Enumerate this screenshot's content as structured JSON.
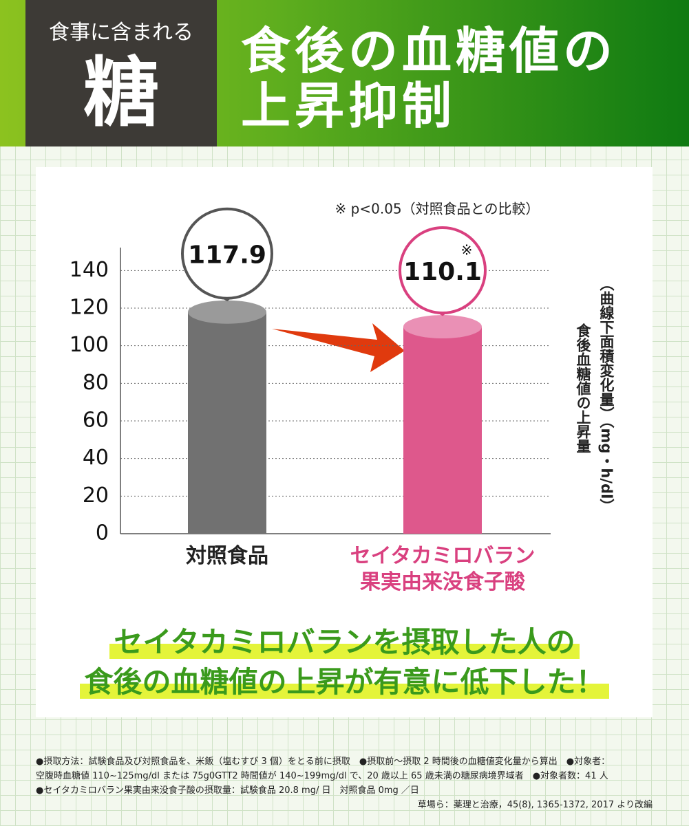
{
  "header": {
    "label": "食事に含まれる",
    "big": "糖",
    "title_lines": [
      "食後の血糖値の",
      "上昇抑制"
    ]
  },
  "chart_data": {
    "type": "bar",
    "note": "※ p<0.05（対照食品との比較）",
    "significance_mark": "※",
    "categories": [
      "対照食品",
      "セイタカミロバラン果実由来没食子酸"
    ],
    "values": [
      117.9,
      110.1
    ],
    "colors": [
      "#717171",
      "#de588c"
    ],
    "top_colors": [
      "#9a9a9a",
      "#ea90b5"
    ],
    "label_colors": [
      "#222222",
      "#d9407f"
    ],
    "bubble_colors": [
      "#555555",
      "#d9407f"
    ],
    "ylim": [
      0,
      150
    ],
    "yticks": [
      0,
      20,
      40,
      60,
      80,
      100,
      120,
      140
    ],
    "grid": true,
    "y_axis_label": [
      "（曲線下面積変化量）（mg・h/dl）",
      "食後血糖値の上昇量"
    ]
  },
  "headline": [
    "セイタカミロバランを摂取した人の",
    "食後の血糖値の上昇が有意に低下した！"
  ],
  "footnotes": [
    "●摂取方法：試験食品及び対照食品を、米飯（塩むすび 3 個）をとる前に摂取　●摂取前〜摂取 2 時間後の血糖値変化量から算出　●対象者：",
    "空腹時血糖値 110~125mg/dl または 75g0GTT2 時間値が 140~199mg/dl で、20 歳以上 65 歳未満の糖尿病境界域者　●対象者数：41 人",
    "●セイタカミロバラン果実由来没食子酸の摂取量：試験食品 20.8 mg/ 日　対照食品 0mg ／日",
    "草場ら：薬理と治療，45(8), 1365-1372, 2017 より改編"
  ]
}
